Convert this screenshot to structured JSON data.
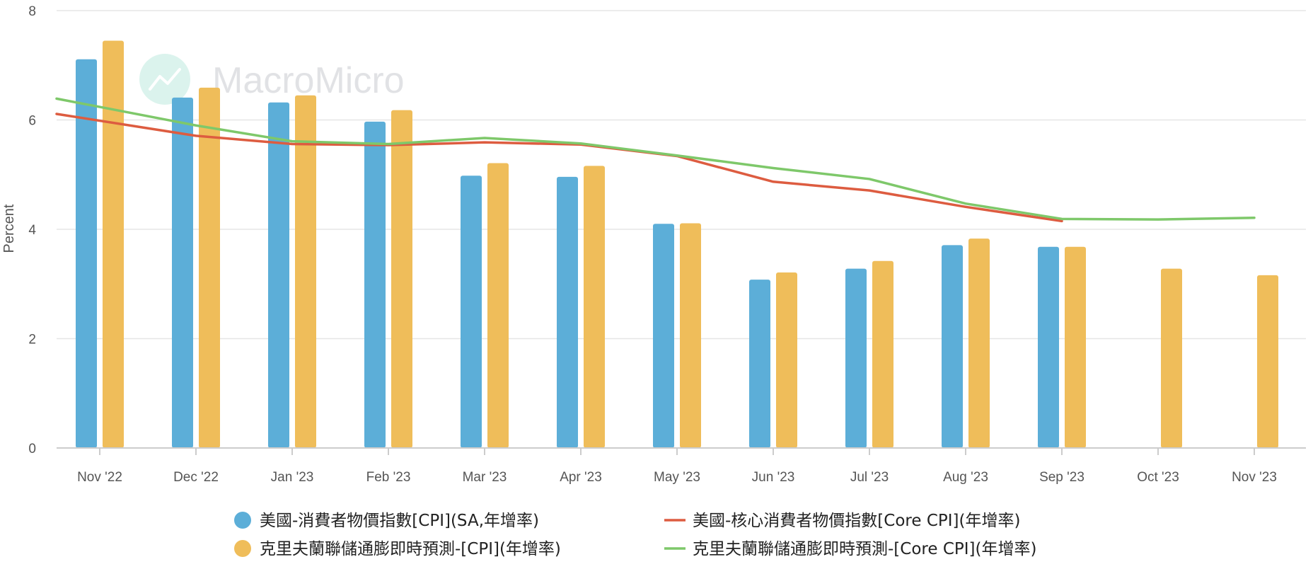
{
  "watermark": {
    "text": "MacroMicro"
  },
  "chart_data": {
    "type": "bar",
    "ylabel": "Percent",
    "ylim": [
      0,
      8
    ],
    "yticks": [
      0,
      2,
      4,
      6,
      8
    ],
    "grid": true,
    "legend_position": "bottom",
    "categories": [
      "Nov '22",
      "Dec '22",
      "Jan '23",
      "Feb '23",
      "Mar '23",
      "Apr '23",
      "May '23",
      "Jun '23",
      "Jul '23",
      "Aug '23",
      "Sep '23",
      "Oct '23",
      "Nov '23"
    ],
    "bar_series": [
      {
        "name": "美國-消費者物價指數[CPI](SA,年增率)",
        "color": "#5caed8",
        "values": [
          7.11,
          6.41,
          6.32,
          5.97,
          4.98,
          4.96,
          4.1,
          3.08,
          3.28,
          3.71,
          3.68,
          null,
          null
        ]
      },
      {
        "name": "克里夫蘭聯儲通膨即時預測-[CPI](年增率)",
        "color": "#efbd5a",
        "values": [
          7.45,
          6.59,
          6.45,
          6.18,
          5.21,
          5.16,
          4.11,
          3.21,
          3.42,
          3.83,
          3.68,
          3.28,
          3.16
        ]
      }
    ],
    "line_series": [
      {
        "name": "美國-核心消費者物價指數[Core CPI](年增率)",
        "color": "#dd5c40",
        "values": [
          6.11,
          5.71,
          5.56,
          5.54,
          5.59,
          5.55,
          5.34,
          4.87,
          4.71,
          4.41,
          4.15,
          null,
          null
        ]
      },
      {
        "name": "克里夫蘭聯儲通膨即時預測-[Core CPI](年增率)",
        "color": "#7ec86a",
        "values": [
          6.39,
          5.9,
          5.61,
          5.56,
          5.67,
          5.57,
          5.35,
          5.12,
          4.92,
          4.47,
          4.19,
          4.18,
          4.21
        ]
      }
    ]
  }
}
